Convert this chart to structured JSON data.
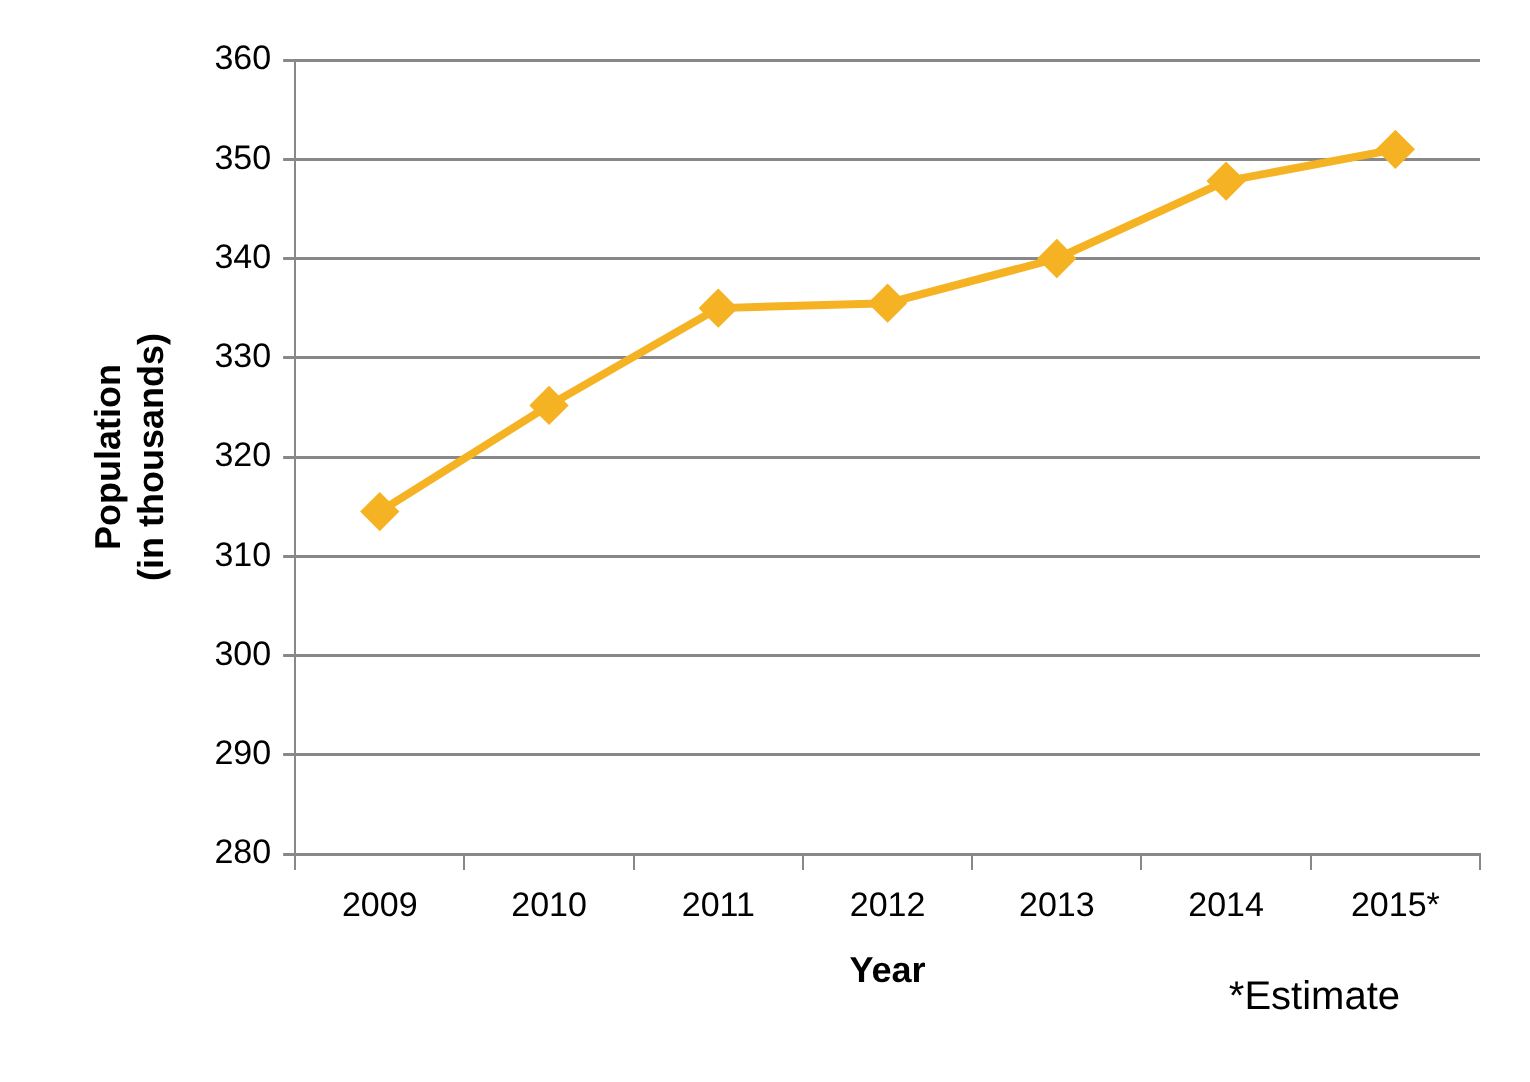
{
  "chart_data": {
    "type": "line",
    "xlabel": "Year",
    "ylabel": "Population\n(in thousands)",
    "categories": [
      "2009",
      "2010",
      "2011",
      "2012",
      "2013",
      "2014",
      "2015*"
    ],
    "series": [
      {
        "color": "#f5b324",
        "values": [
          314.5,
          325.2,
          335,
          335.5,
          340,
          347.8,
          351
        ]
      }
    ],
    "ylim": [
      280,
      360
    ],
    "yticks": [
      280,
      290,
      300,
      310,
      320,
      330,
      340,
      350,
      360
    ],
    "grid": "y",
    "legend": false,
    "marker": "diamond",
    "line_style": "solid",
    "annotations": [
      "*Estimate"
    ]
  }
}
